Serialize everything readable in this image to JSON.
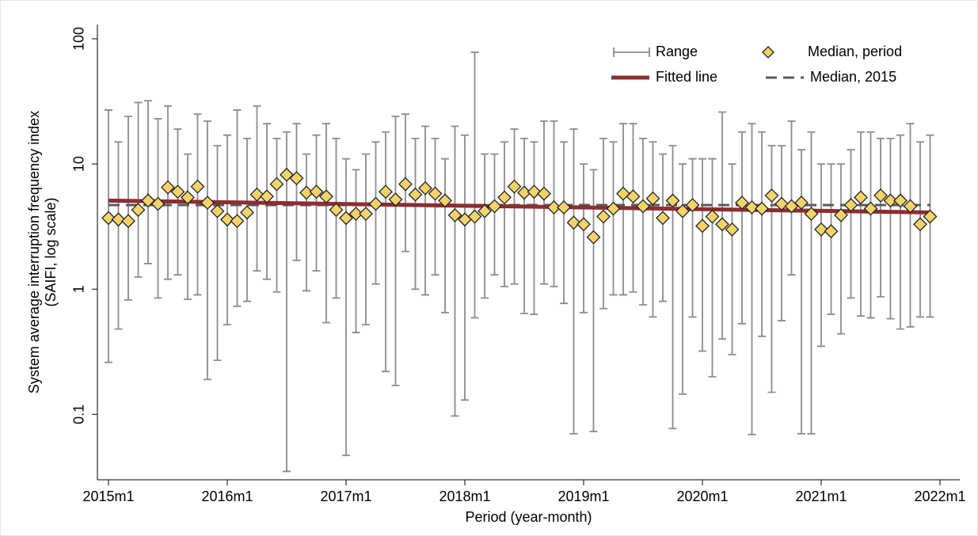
{
  "chart_data": {
    "type": "combo",
    "xlabel": "Period (year-month)",
    "ylabel": [
      "System average interruption frequency index",
      "(SAIFI, log scale)"
    ],
    "log_y": true,
    "legend": "top-right",
    "xlim": [
      2014.9067,
      2022.1667
    ],
    "xticks": [
      {
        "value": 2015,
        "label": "2015m1"
      },
      {
        "value": 2016,
        "label": "2016m1"
      },
      {
        "value": 2017,
        "label": "2017m1"
      },
      {
        "value": 2018,
        "label": "2018m1"
      },
      {
        "value": 2019,
        "label": "2019m1"
      },
      {
        "value": 2020,
        "label": "2020m1"
      },
      {
        "value": 2021,
        "label": "2021m1"
      },
      {
        "value": 2022,
        "label": "2022m1"
      }
    ],
    "ylim": [
      0.03,
      130
    ],
    "yticks": [
      0.1,
      1,
      10,
      100
    ],
    "x": [
      2015,
      2015.0833,
      2015.1667,
      2015.25,
      2015.3333,
      2015.4167,
      2015.5,
      2015.5833,
      2015.6667,
      2015.75,
      2015.8333,
      2015.9167,
      2016,
      2016.0833,
      2016.1667,
      2016.25,
      2016.3333,
      2016.4167,
      2016.5,
      2016.5833,
      2016.6667,
      2016.75,
      2016.8333,
      2016.9167,
      2017,
      2017.0833,
      2017.1667,
      2017.25,
      2017.3333,
      2017.4167,
      2017.5,
      2017.5833,
      2017.6667,
      2017.75,
      2017.8333,
      2017.9167,
      2018,
      2018.0833,
      2018.1667,
      2018.25,
      2018.3333,
      2018.4167,
      2018.5,
      2018.5833,
      2018.6667,
      2018.75,
      2018.8333,
      2018.9167,
      2019,
      2019.0833,
      2019.1667,
      2019.25,
      2019.3333,
      2019.4167,
      2019.5,
      2019.5833,
      2019.6667,
      2019.75,
      2019.8333,
      2019.9167,
      2020,
      2020.0833,
      2020.1667,
      2020.25,
      2020.3333,
      2020.4167,
      2020.5,
      2020.5833,
      2020.6667,
      2020.75,
      2020.8333,
      2020.9167,
      2021,
      2021.0833,
      2021.1667,
      2021.25,
      2021.3333,
      2021.4167,
      2021.5,
      2021.5833,
      2021.6667,
      2021.75,
      2021.8333,
      2021.9167
    ],
    "series": [
      {
        "name": "Range",
        "type": "range",
        "color": "#8c8c8c",
        "low": [
          0.26,
          0.48,
          0.82,
          1.25,
          1.6,
          0.85,
          1.2,
          1.3,
          0.83,
          0.9,
          0.19,
          0.27,
          0.52,
          0.73,
          0.8,
          1.4,
          1.2,
          0.95,
          0.035,
          1.7,
          0.97,
          1.4,
          0.54,
          0.85,
          0.047,
          0.45,
          0.52,
          1.1,
          0.22,
          0.17,
          2.0,
          1.0,
          0.9,
          1.3,
          0.65,
          0.097,
          0.13,
          0.59,
          0.85,
          1.3,
          1.05,
          1.1,
          0.64,
          0.63,
          1.1,
          1.05,
          0.77,
          0.07,
          0.65,
          0.073,
          0.7,
          0.9,
          0.9,
          0.95,
          0.75,
          0.6,
          0.8,
          0.077,
          0.145,
          0.6,
          0.32,
          0.2,
          0.4,
          0.3,
          0.53,
          0.069,
          0.42,
          0.15,
          0.56,
          1.3,
          0.07,
          0.07,
          0.35,
          0.63,
          0.44,
          0.85,
          0.61,
          0.59,
          0.87,
          0.58,
          0.48,
          0.5,
          0.6,
          0.6
        ],
        "high": [
          27,
          15,
          24,
          31,
          32,
          23,
          29,
          19,
          12,
          25,
          22,
          14,
          17,
          27,
          16,
          29,
          21,
          16,
          18,
          21,
          12,
          17,
          21,
          16,
          11,
          9,
          12,
          15,
          18,
          24,
          25,
          16,
          20,
          16,
          11,
          20,
          17,
          78,
          12,
          12,
          15,
          19,
          16,
          15,
          22,
          22,
          15,
          19,
          10,
          9,
          16,
          15,
          21,
          21,
          16,
          15,
          12,
          14,
          10,
          11,
          11,
          11,
          26,
          10,
          18,
          21,
          18,
          14,
          14,
          22,
          13,
          18,
          10,
          10,
          10,
          13,
          18,
          18,
          16,
          16,
          17,
          21,
          15,
          17
        ]
      },
      {
        "name": "Median, period",
        "type": "scatter",
        "color": "#f5d36b",
        "values": [
          3.7,
          3.6,
          3.5,
          4.3,
          5.1,
          4.8,
          6.5,
          6.0,
          5.4,
          6.6,
          4.9,
          4.2,
          3.6,
          3.5,
          4.1,
          5.7,
          5.5,
          6.9,
          8.2,
          7.7,
          5.9,
          6.0,
          5.5,
          4.3,
          3.7,
          4.0,
          4.0,
          4.8,
          6.0,
          5.2,
          6.9,
          5.7,
          6.4,
          5.8,
          5.1,
          3.9,
          3.6,
          3.8,
          4.2,
          4.6,
          5.4,
          6.6,
          5.9,
          6.0,
          5.8,
          4.5,
          4.5,
          3.4,
          3.3,
          2.6,
          3.8,
          4.4,
          5.8,
          5.5,
          4.6,
          5.3,
          3.7,
          5.1,
          4.2,
          4.7,
          3.2,
          3.8,
          3.3,
          3.0,
          4.9,
          4.5,
          4.4,
          5.6,
          4.8,
          4.6,
          4.9,
          4.0,
          3.0,
          2.9,
          3.9,
          4.7,
          5.4,
          4.4,
          5.6,
          5.1,
          5.1,
          4.6,
          3.3,
          3.8
        ]
      },
      {
        "name": "Fitted line",
        "type": "line",
        "color": "#8b2e32",
        "x": [
          2015,
          2021.9167
        ],
        "values": [
          5.1,
          4.1
        ]
      },
      {
        "name": "Median, 2015",
        "type": "dashed",
        "color": "#5a5a5a",
        "x": [
          2015,
          2021.9167
        ],
        "values": [
          4.7,
          4.7
        ]
      }
    ]
  }
}
